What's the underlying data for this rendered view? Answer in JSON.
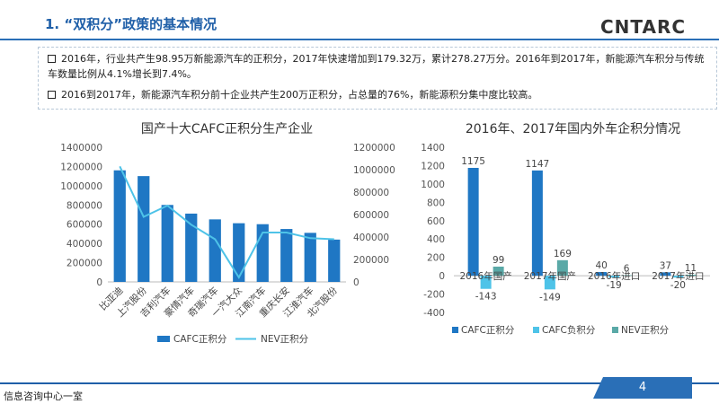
{
  "slide": {
    "title": "1. “双积分”政策的基本情况",
    "logo_text": "CNTARC",
    "footer_text": "信息咨询中心一室",
    "page_number": "4"
  },
  "summary": {
    "bullet1": "2016年，行业共产生98.95万新能源汽车的正积分，2017年快速增加到179.32万，累计278.27万分。2016年到2017年，新能源汽车积分与传统车数量比例从4.1%增长到7.4%。",
    "bullet2": "2016到2017年，新能源汽车积分前十企业共产生200万正积分，占总量的76%，新能源积分集中度比较高。"
  },
  "chart_data": [
    {
      "type": "bar+line",
      "title": "国产十大CAFC正积分生产企业",
      "categories": [
        "比亚迪",
        "上汽股份",
        "吉利汽车",
        "豪情汽车",
        "奇瑞汽车",
        "一汽大众",
        "江南汽车",
        "重庆长安",
        "江淮汽车",
        "北汽股份"
      ],
      "series": [
        {
          "name": "CAFC正积分",
          "type": "bar",
          "axis": "left",
          "color": "#1f77c4",
          "values": [
            1160000,
            1100000,
            800000,
            710000,
            650000,
            610000,
            600000,
            550000,
            510000,
            440000
          ]
        },
        {
          "name": "NEV正积分",
          "type": "line",
          "axis": "right",
          "color": "#4ec3e8",
          "values": [
            1030000,
            580000,
            680000,
            510000,
            380000,
            40000,
            440000,
            440000,
            390000,
            380000
          ]
        }
      ],
      "left_axis": {
        "min": 0,
        "max": 1400000,
        "ticks": [
          "0",
          "200000",
          "400000",
          "600000",
          "800000",
          "1000000",
          "1200000",
          "1400000"
        ]
      },
      "right_axis": {
        "min": 0,
        "max": 1200000,
        "ticks": [
          "0",
          "200000",
          "400000",
          "600000",
          "800000",
          "1000000",
          "1200000"
        ]
      }
    },
    {
      "type": "bar",
      "title": "2016年、2017年国内外车企积分情况",
      "categories": [
        "2016年国产",
        "2017年国产",
        "2016年进口",
        "2017年进口"
      ],
      "series": [
        {
          "name": "CAFC正积分",
          "color": "#1f77c4",
          "values": [
            1175,
            1147,
            40,
            37
          ]
        },
        {
          "name": "CAFC负积分",
          "color": "#4ec3e8",
          "values": [
            -143,
            -149,
            -19,
            -20
          ]
        },
        {
          "name": "NEV正积分",
          "color": "#5aa9a7",
          "values": [
            99,
            169,
            6,
            11
          ]
        }
      ],
      "data_labels": [
        [
          "1175",
          "-143",
          "99"
        ],
        [
          "1147",
          "-149",
          "169"
        ],
        [
          "40",
          "-19",
          "6"
        ],
        [
          "37",
          "-20",
          "11"
        ]
      ],
      "y_axis": {
        "min": -400,
        "max": 1400,
        "ticks": [
          "-400",
          "-200",
          "0",
          "200",
          "400",
          "600",
          "800",
          "1000",
          "1200",
          "1400"
        ]
      }
    }
  ]
}
